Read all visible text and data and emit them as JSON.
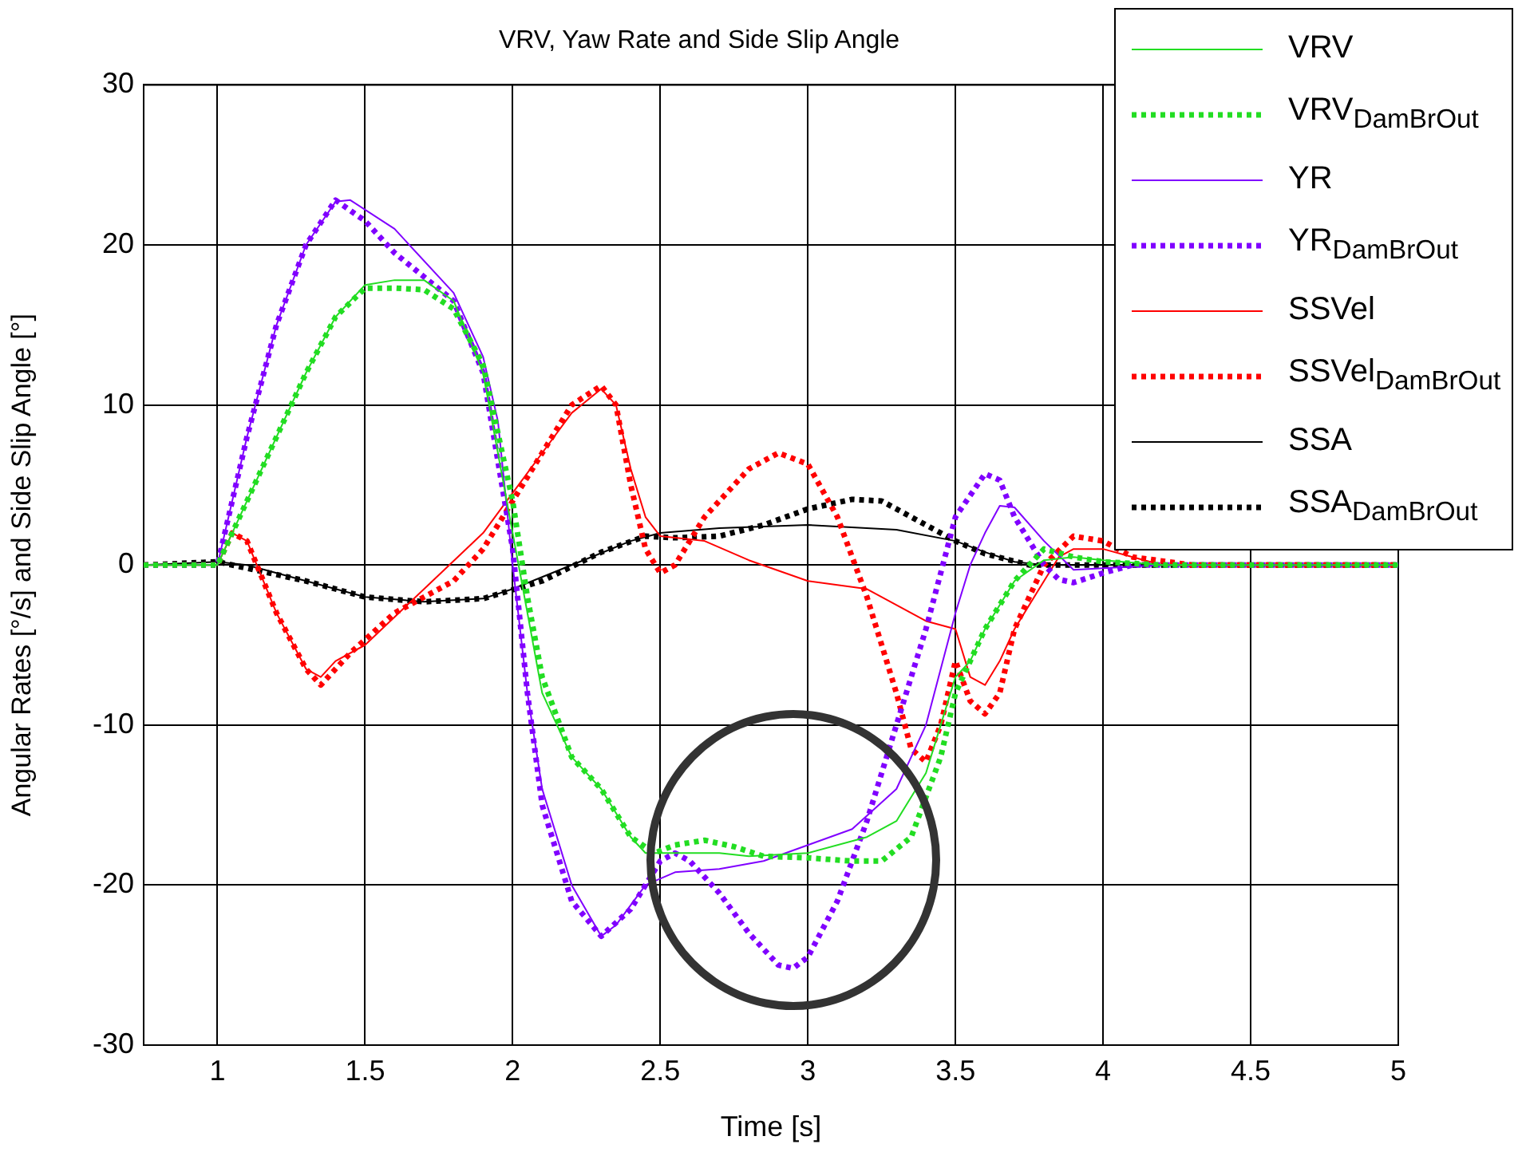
{
  "chart_data": {
    "type": "line",
    "title": "VRV, Yaw Rate and Side Slip Angle",
    "xlabel": "Time [s]",
    "ylabel": "Angular Rates [°/s] and Side Slip Angle [°]",
    "xlim": [
      0.75,
      5
    ],
    "xticks": [
      1,
      1.5,
      2,
      2.5,
      3,
      3.5,
      4,
      4.5,
      5
    ],
    "ylim": [
      -30,
      30
    ],
    "yticks": [
      -30,
      -20,
      -10,
      0,
      10,
      20,
      30
    ],
    "grid": true,
    "legend": "top right",
    "marker": "none",
    "series": [
      {
        "name": "VRV",
        "color": "#22dd22",
        "line_style": "solid",
        "x": [
          0.75,
          1.0,
          1.05,
          1.2,
          1.3,
          1.4,
          1.5,
          1.6,
          1.7,
          1.8,
          1.9,
          2.0,
          2.05,
          2.1,
          2.2,
          2.3,
          2.4,
          2.45,
          2.5,
          2.7,
          2.8,
          3.0,
          3.2,
          3.3,
          3.4,
          3.5,
          3.55,
          3.6,
          3.7,
          3.8,
          3.9,
          4.0,
          4.2,
          5.0
        ],
        "values": [
          0,
          0,
          2,
          8,
          12,
          15.5,
          17.5,
          17.8,
          17.8,
          16.5,
          12,
          2,
          -3,
          -8,
          -12,
          -14,
          -17,
          -18,
          -18,
          -18,
          -18.2,
          -18,
          -17,
          -16,
          -13,
          -7,
          -6,
          -4,
          -1,
          0.3,
          0.5,
          0.3,
          0,
          0
        ]
      },
      {
        "name": "VRV$_{DamBrOut}$",
        "color": "#22dd22",
        "line_style": "dotted",
        "x": [
          0.75,
          1.0,
          1.05,
          1.2,
          1.3,
          1.4,
          1.5,
          1.6,
          1.7,
          1.8,
          1.9,
          2.0,
          2.05,
          2.1,
          2.2,
          2.3,
          2.4,
          2.48,
          2.55,
          2.65,
          2.75,
          2.85,
          3.0,
          3.15,
          3.25,
          3.35,
          3.45,
          3.5,
          3.6,
          3.7,
          3.8,
          3.9,
          4.0,
          4.2,
          5.0
        ],
        "values": [
          0,
          0,
          2,
          8,
          12,
          15.5,
          17.3,
          17.3,
          17.2,
          16,
          12.5,
          4,
          -2,
          -7,
          -12,
          -14,
          -17,
          -18,
          -17.5,
          -17.2,
          -17.6,
          -18.2,
          -18.3,
          -18.5,
          -18.5,
          -17,
          -12,
          -8,
          -4,
          -1,
          1,
          0.5,
          0.2,
          0,
          0
        ]
      },
      {
        "name": "YR",
        "color": "#8000ff",
        "line_style": "solid",
        "x": [
          0.75,
          1.0,
          1.1,
          1.2,
          1.3,
          1.4,
          1.45,
          1.6,
          1.8,
          1.9,
          1.95,
          2.0,
          2.05,
          2.1,
          2.2,
          2.3,
          2.35,
          2.45,
          2.55,
          2.7,
          2.85,
          3.0,
          3.15,
          3.3,
          3.4,
          3.5,
          3.55,
          3.6,
          3.65,
          3.7,
          3.8,
          3.9,
          4.0,
          4.2,
          5.0
        ],
        "values": [
          0,
          0,
          8,
          15,
          20,
          22.7,
          22.8,
          21,
          17,
          13,
          9,
          0,
          -8,
          -14,
          -20,
          -23.2,
          -22.5,
          -20,
          -19.2,
          -19,
          -18.5,
          -17.5,
          -16.5,
          -14,
          -10,
          -3,
          0,
          2,
          3.7,
          3.6,
          1.5,
          -0.3,
          -0.2,
          0,
          0
        ]
      },
      {
        "name": "YR$_{DamBrOut}$",
        "color": "#8000ff",
        "line_style": "dotted",
        "x": [
          0.75,
          1.0,
          1.1,
          1.2,
          1.3,
          1.4,
          1.5,
          1.6,
          1.7,
          1.8,
          1.9,
          2.0,
          2.05,
          2.1,
          2.2,
          2.3,
          2.4,
          2.5,
          2.55,
          2.6,
          2.7,
          2.8,
          2.9,
          2.95,
          3.0,
          3.1,
          3.2,
          3.3,
          3.4,
          3.5,
          3.6,
          3.65,
          3.7,
          3.8,
          3.85,
          3.9,
          4.0,
          4.1,
          5.0
        ],
        "values": [
          0,
          0,
          8,
          15,
          20,
          22.8,
          21.5,
          19.5,
          18,
          16.5,
          12,
          1,
          -8,
          -15,
          -21,
          -23.2,
          -21.5,
          -18.5,
          -18,
          -18.5,
          -20.5,
          -23,
          -25,
          -25.2,
          -24.5,
          -21,
          -16,
          -10,
          -4,
          3,
          5.7,
          5.3,
          3,
          0,
          -0.9,
          -1.1,
          -0.5,
          0,
          0
        ]
      },
      {
        "name": "SSVel",
        "color": "#ff0000",
        "line_style": "solid",
        "x": [
          0.75,
          1.0,
          1.05,
          1.1,
          1.2,
          1.3,
          1.35,
          1.4,
          1.5,
          1.7,
          1.9,
          2.0,
          2.1,
          2.2,
          2.3,
          2.35,
          2.4,
          2.45,
          2.5,
          2.65,
          2.8,
          3.0,
          3.2,
          3.35,
          3.4,
          3.5,
          3.55,
          3.6,
          3.65,
          3.7,
          3.8,
          3.85,
          3.9,
          4.0,
          4.1,
          4.2,
          5.0
        ],
        "values": [
          0,
          0,
          2,
          1.5,
          -3,
          -6.5,
          -7,
          -6,
          -5,
          -1.5,
          2,
          4.5,
          7,
          9.5,
          11,
          10,
          6,
          3,
          1.8,
          1.5,
          0.3,
          -1,
          -1.5,
          -3,
          -3.5,
          -4,
          -7,
          -7.5,
          -6,
          -4,
          -1,
          0.5,
          1,
          1,
          0.5,
          0,
          0
        ]
      },
      {
        "name": "SSVel$_{DamBrOut}$",
        "color": "#ff0000",
        "line_style": "dotted",
        "x": [
          0.75,
          1.0,
          1.05,
          1.1,
          1.2,
          1.3,
          1.35,
          1.45,
          1.6,
          1.8,
          1.9,
          2.0,
          2.1,
          2.2,
          2.3,
          2.35,
          2.4,
          2.45,
          2.5,
          2.55,
          2.65,
          2.8,
          2.9,
          3.0,
          3.1,
          3.2,
          3.3,
          3.35,
          3.4,
          3.45,
          3.5,
          3.55,
          3.6,
          3.65,
          3.7,
          3.8,
          3.9,
          4.0,
          4.1,
          4.3,
          5.0
        ],
        "values": [
          0,
          0,
          2,
          1.5,
          -3,
          -6.5,
          -7.5,
          -5.5,
          -3,
          -1,
          1,
          4,
          7,
          10,
          11.2,
          10,
          5,
          1,
          -0.5,
          0,
          3,
          6,
          7,
          6.3,
          3,
          -2,
          -8,
          -11.5,
          -12.3,
          -10,
          -6,
          -8.5,
          -9.3,
          -8,
          -4,
          0,
          1.8,
          1.5,
          0.5,
          0,
          0
        ]
      },
      {
        "name": "SSA",
        "color": "#000000",
        "line_style": "solid",
        "x": [
          0.75,
          1.0,
          1.1,
          1.3,
          1.5,
          1.7,
          1.9,
          2.0,
          2.2,
          2.4,
          2.5,
          2.7,
          3.0,
          3.3,
          3.5,
          3.6,
          3.7,
          3.8,
          5.0
        ],
        "values": [
          0,
          0.2,
          0,
          -1,
          -2,
          -2.3,
          -2.1,
          -1.5,
          0,
          1.5,
          2,
          2.3,
          2.5,
          2.2,
          1.5,
          0.8,
          0.2,
          0,
          0
        ]
      },
      {
        "name": "SSA$_{DamBrOut}$",
        "color": "#000000",
        "line_style": "dotted",
        "x": [
          0.75,
          1.0,
          1.3,
          1.5,
          1.7,
          1.9,
          2.1,
          2.3,
          2.45,
          2.55,
          2.7,
          2.85,
          3.0,
          3.15,
          3.25,
          3.4,
          3.5,
          3.6,
          3.75,
          5.0
        ],
        "values": [
          0,
          0.2,
          -1,
          -2,
          -2.3,
          -2.1,
          -1,
          0.8,
          1.8,
          1.7,
          1.8,
          2.5,
          3.5,
          4.1,
          4,
          2.5,
          1.5,
          0.7,
          0,
          0
        ]
      }
    ]
  }
}
